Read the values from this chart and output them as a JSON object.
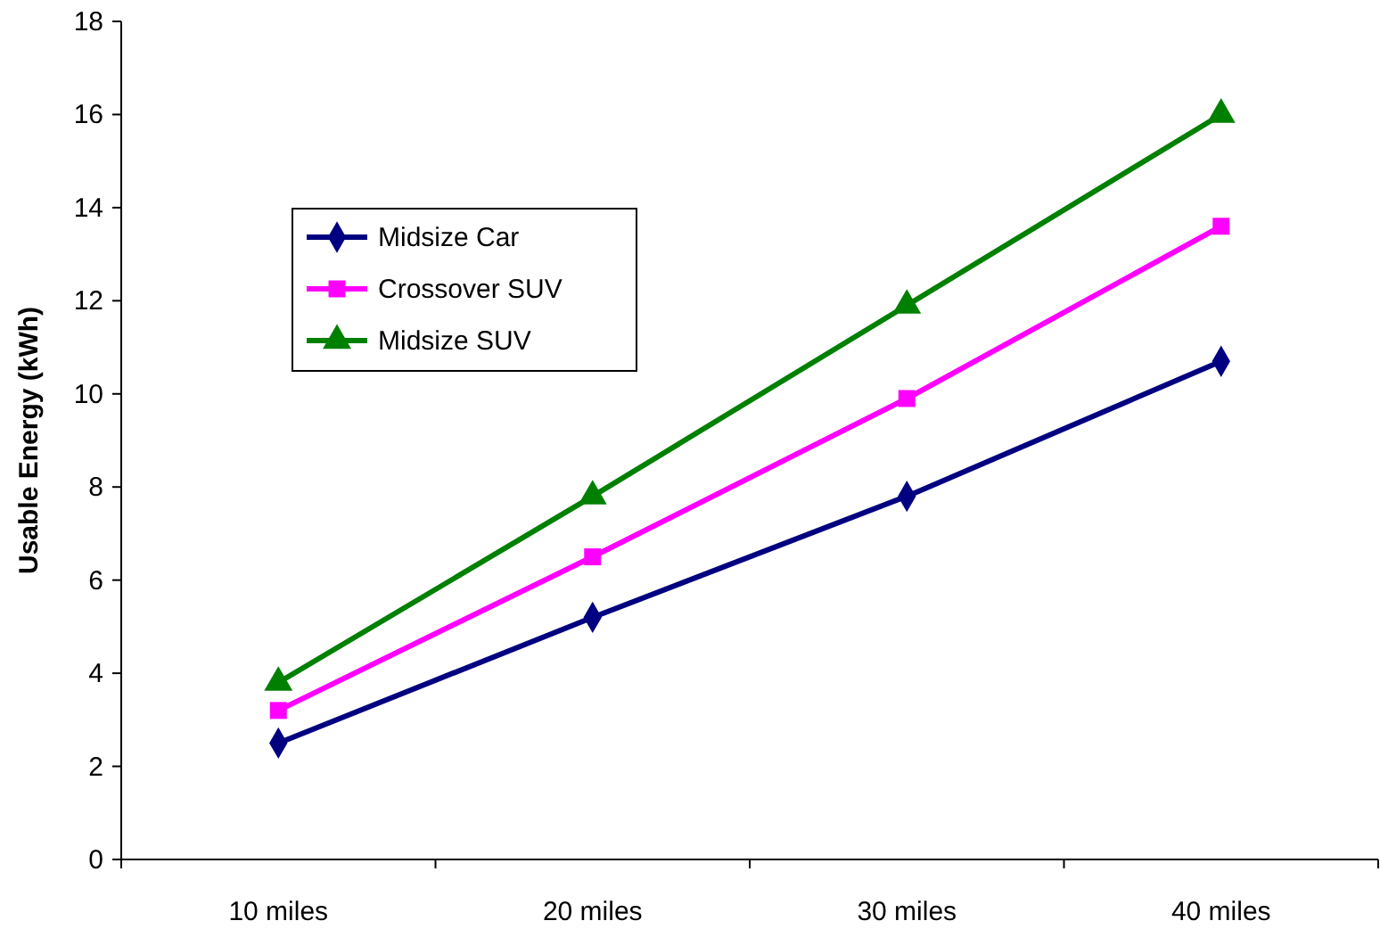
{
  "chart_data": {
    "type": "line",
    "ylabel": "Usable Energy (kWh)",
    "categories": [
      "10 miles",
      "20 miles",
      "30 miles",
      "40 miles"
    ],
    "series": [
      {
        "name": "Midsize Car",
        "color": "#000080",
        "marker": "diamond",
        "values": [
          2.5,
          5.2,
          7.8,
          10.7
        ]
      },
      {
        "name": "Crossover SUV",
        "color": "#ff00ff",
        "marker": "square",
        "values": [
          3.2,
          6.5,
          9.9,
          13.6
        ]
      },
      {
        "name": "Midsize SUV",
        "color": "#008000",
        "marker": "triangle",
        "values": [
          3.8,
          7.8,
          11.9,
          16.0
        ]
      }
    ],
    "ylim": [
      0,
      18
    ],
    "yticks": [
      0,
      2,
      4,
      6,
      8,
      10,
      12,
      14,
      16,
      18
    ],
    "grid": false,
    "legend": "top left"
  }
}
